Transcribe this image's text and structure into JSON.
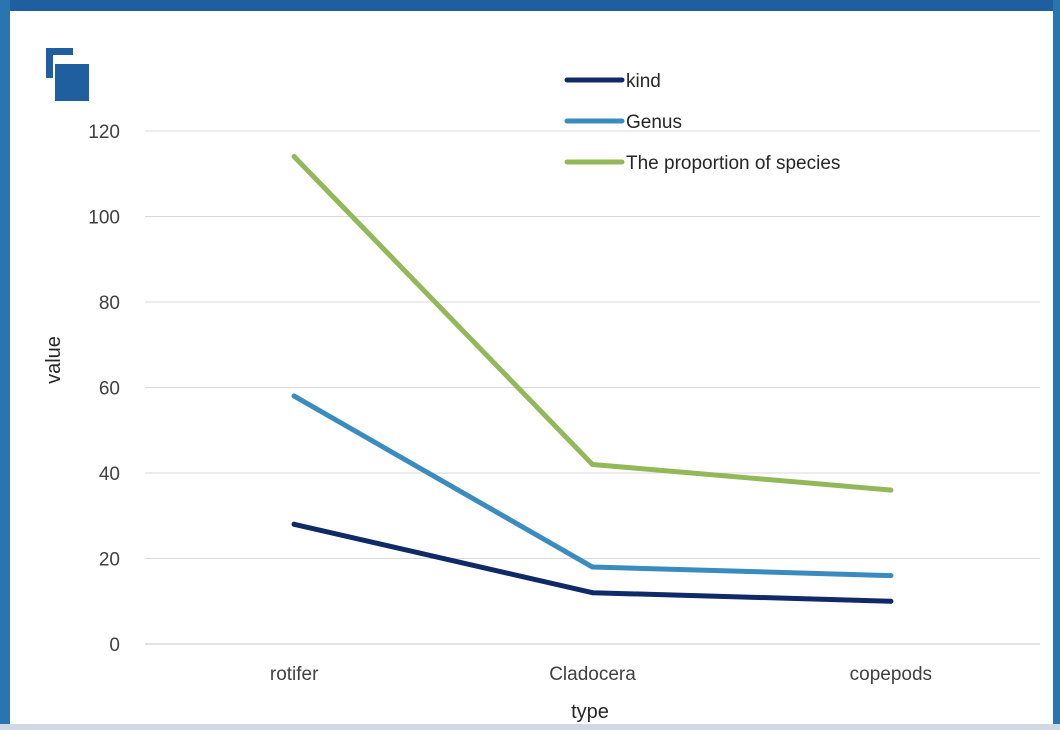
{
  "colors": {
    "frame_top": "#1f5fa0",
    "frame_side": "#2a75b0",
    "frame_inner_shadow": "#cfd8e3",
    "gridline": "#d9d9d9",
    "axis_line": "#d9d9d9",
    "logo": "#1f5fa0"
  },
  "chart_data": {
    "type": "line",
    "categories": [
      "rotifer",
      "Cladocera",
      "copepods"
    ],
    "series": [
      {
        "name": "kind",
        "values": [
          28,
          12,
          10
        ],
        "color": "#0f2a66"
      },
      {
        "name": "Genus",
        "values": [
          58,
          18,
          16
        ],
        "color": "#3a8cbf"
      },
      {
        "name": "The proportion of species",
        "values": [
          114,
          42,
          36
        ],
        "color": "#93b85a"
      }
    ],
    "xlabel": "type",
    "ylabel": "value",
    "ylim": [
      0,
      120
    ],
    "yticks": [
      "0",
      "20",
      "40",
      "60",
      "80",
      "100",
      "120"
    ],
    "grid": true,
    "legend_position": "top"
  }
}
